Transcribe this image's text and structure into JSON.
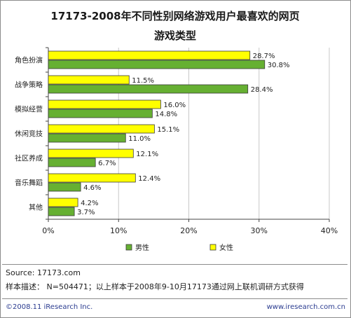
{
  "title_line1": "17173-2008年不同性别网络游戏用户最喜欢的网页",
  "title_line2": "游戏类型",
  "source": "Source:  17173.com",
  "sample_note": "样本描述：  N=504471；以上样本于2008年9-10月17173通过网上联机调研方式获得",
  "footer_left": "©2008.11 iResearch Inc.",
  "footer_right": "www.iresearch.com.cn",
  "colors": {
    "female": "#ffff00",
    "male": "#66b032",
    "outline": "#3a3a3a",
    "grid": "#c8c8c8"
  },
  "chart_data": {
    "type": "bar",
    "orientation": "horizontal",
    "categories": [
      "角色扮演",
      "战争策略",
      "模拟经营",
      "休闲竞技",
      "社区养成",
      "音乐舞蹈",
      "其他"
    ],
    "series": [
      {
        "name": "女性",
        "values": [
          28.7,
          11.5,
          16.0,
          15.1,
          12.1,
          12.4,
          4.2
        ]
      },
      {
        "name": "男性",
        "values": [
          30.8,
          28.4,
          14.8,
          11.0,
          6.7,
          4.6,
          3.7
        ]
      }
    ],
    "data_labels": {
      "女性": [
        "28.7%",
        "11.5%",
        "16.0%",
        "15.1%",
        "12.1%",
        "12.4%",
        "4.2%"
      ],
      "男性": [
        "30.8%",
        "28.4%",
        "14.8%",
        "11.0%",
        "6.7%",
        "4.6%",
        "3.7%"
      ]
    },
    "xlim": [
      0,
      40
    ],
    "xticks": [
      "0%",
      "10%",
      "20%",
      "30%",
      "40%"
    ],
    "legend": [
      "男性",
      "女性"
    ],
    "legend_position": "bottom",
    "grid": true
  }
}
